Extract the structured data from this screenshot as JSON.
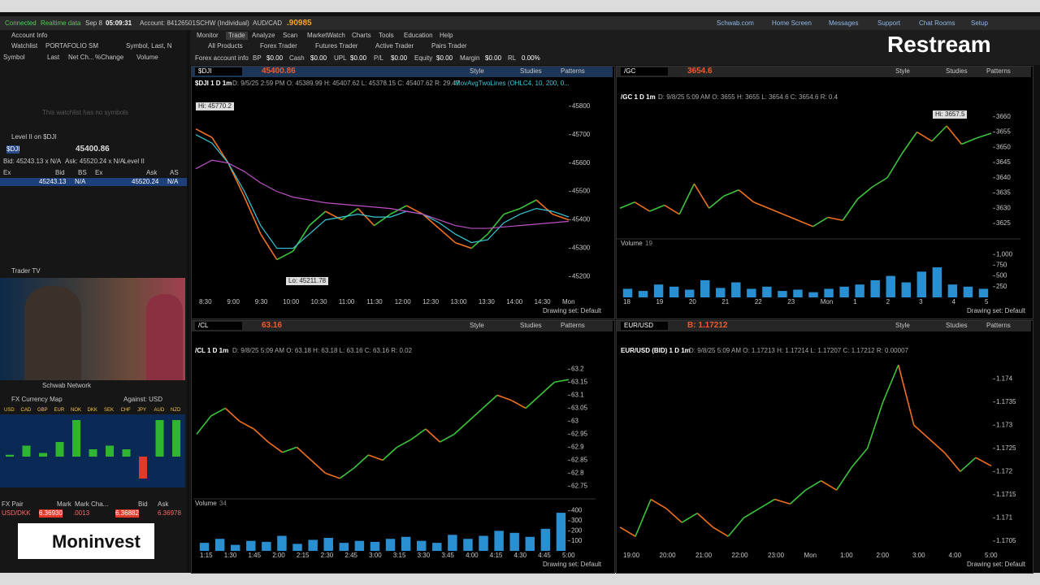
{
  "top_bar": {
    "status": "Connected",
    "feed": "Realtime data",
    "date": "Sep 8",
    "time": "05:09:31",
    "account": "Account: 84126501SCHW (Individual)",
    "pair": "AUD/CAD",
    "pair_price": ".90985",
    "links": [
      "Schwab.com",
      "Home Screen",
      "Messages",
      "Support",
      "Chat Rooms",
      "Setup"
    ]
  },
  "menu": [
    "Monitor",
    "Trade",
    "Analyze",
    "Scan",
    "MarketWatch",
    "Charts",
    "Tools",
    "Education",
    "Help"
  ],
  "sub_tabs": [
    "All Products",
    "Forex Trader",
    "Futures Trader",
    "Active Trader",
    "Pairs Trader"
  ],
  "account_bar": [
    "Forex account info",
    "BP",
    "$0.00",
    "Cash",
    "$0.00",
    "UPL",
    "$0.00",
    "P/L",
    "$0.00",
    "Equity",
    "$0.00",
    "Margin",
    "$0.00",
    "RL",
    "0.00%"
  ],
  "left_panel": {
    "account_info": "Account Info",
    "watchlist": {
      "title": "Watchlist",
      "name": "PORTAFOLIO SM",
      "columns_set": "Symbol, Last, N",
      "headers": [
        "Symbol",
        "Last",
        "Net Ch...",
        "%Change",
        "Volume"
      ],
      "empty": "This watchlist has no symbols"
    },
    "level2": {
      "title": "Level II on $DJI",
      "symbol": "$DJI",
      "price": "45400.86",
      "bid": "Bid: 45243.13 x N/A",
      "ask": "Ask: 45520.24 x N/A",
      "tab": "Level II",
      "headers": [
        "Ex",
        "Bid",
        "BS",
        "Ex",
        "Ask",
        "AS"
      ],
      "row": [
        "45243.13",
        "N/A",
        "45520.24",
        "N/A"
      ]
    },
    "trader_tv": {
      "title": "Trader TV",
      "channel": "Schwab Network"
    },
    "fx_map": {
      "title": "FX Currency Map",
      "against": "Against: USD",
      "currencies": [
        "USD",
        "CAD",
        "GBP",
        "EUR",
        "NOK",
        "DKK",
        "SEK",
        "CHF",
        "JPY",
        "AUD",
        "NZD"
      ],
      "values": [
        0.05,
        0.3,
        0.1,
        0.4,
        1.0,
        0.2,
        0.3,
        0.2,
        -0.6,
        1.0,
        1.0
      ],
      "up_color": "#2fb52f",
      "down_color": "#e03a2a"
    },
    "fx_table": {
      "headers": [
        "FX Pair",
        "Mark",
        "Mark Cha...",
        "Bid",
        "Ask"
      ],
      "row": [
        "USD/DKK",
        "6.36930",
        ".0013",
        "6.36882",
        "6.36978"
      ]
    }
  },
  "chart_toolbar": {
    "style": "Style",
    "studies": "Studies",
    "patterns": "Patterns",
    "drawing_set": "Drawing set: Default"
  },
  "charts": [
    {
      "type": "line",
      "symbol": "$DJI",
      "price": "45400.86",
      "title": "$DJI 1 D 1m",
      "info": "D: 9/5/25 2:59 PM  O: 45389.99  H: 45407.62  L: 45378.15  C: 45407.62  R: 29.47",
      "study": "MovAvgTwoLines (OHLC4, 10, 200, 0...",
      "annotations": [
        "Hi: 45770.2",
        "Lo: 45211.78"
      ],
      "x_labels": [
        "8:30",
        "9:00",
        "9:30",
        "10:00",
        "10:30",
        "11:00",
        "11:30",
        "12:00",
        "12:30",
        "13:00",
        "13:30",
        "14:00",
        "14:30",
        "Mon"
      ],
      "ylim": [
        45130,
        45825
      ],
      "yticks": [
        45200,
        45300,
        45400,
        45500,
        45600,
        45700,
        45800
      ],
      "series": [
        {
          "up_color": "#3cc43c",
          "down_color": "#f07020",
          "values": [
            45720,
            45690,
            45600,
            45480,
            45350,
            45260,
            45290,
            45380,
            45430,
            45400,
            45440,
            45380,
            45420,
            45450,
            45420,
            45370,
            45320,
            45300,
            45350,
            45420,
            45440,
            45470,
            45420,
            45400
          ]
        },
        {
          "color": "#38c8d8",
          "values": [
            45700,
            45670,
            45600,
            45500,
            45380,
            45300,
            45300,
            45350,
            45400,
            45410,
            45420,
            45410,
            45410,
            45430,
            45420,
            45390,
            45350,
            45320,
            45330,
            45390,
            45420,
            45440,
            45430,
            45410
          ]
        },
        {
          "color": "#c050c8",
          "values": [
            45580,
            45610,
            45600,
            45570,
            45530,
            45500,
            45480,
            45470,
            45460,
            45455,
            45450,
            45445,
            45440,
            45430,
            45420,
            45400,
            45380,
            45370,
            45370,
            45375,
            45380,
            45385,
            45390,
            45395
          ]
        }
      ]
    },
    {
      "type": "line",
      "symbol": "/GC",
      "price": "3654.6",
      "title": "/GC 1 D 1m",
      "info": "D: 9/8/25 5:09 AM  O: 3655  H: 3655  L: 3654.6  C: 3654.6  R: 0.4",
      "annotations": [
        "Hi: 3657.5"
      ],
      "x_labels": [
        "18",
        "19",
        "20",
        "21",
        "22",
        "23",
        "Mon",
        "1",
        "2",
        "3",
        "4",
        "5"
      ],
      "ylim": [
        3621,
        3665
      ],
      "yticks": [
        3625,
        3630,
        3635,
        3640,
        3645,
        3650,
        3655,
        3660
      ],
      "series": [
        {
          "up_color": "#3cc43c",
          "down_color": "#f07020",
          "values": [
            3630,
            3632,
            3629,
            3631,
            3628,
            3638,
            3630,
            3634,
            3636,
            3632,
            3630,
            3628,
            3626,
            3624,
            3627,
            3626,
            3633,
            3637,
            3640,
            3648,
            3655,
            3652,
            3657,
            3651,
            3653,
            3654.6
          ]
        }
      ],
      "volume": {
        "label": "Volume",
        "count": "19",
        "color": "#2a8fd0",
        "ylim": [
          0,
          1250
        ],
        "yticks": [
          250,
          500,
          750,
          {
            "value": 1000,
            "label": "1,000"
          }
        ],
        "values": [
          200,
          150,
          300,
          250,
          180,
          400,
          220,
          350,
          200,
          250,
          150,
          180,
          120,
          200,
          250,
          300,
          400,
          500,
          350,
          600,
          700,
          300,
          250,
          200
        ]
      }
    },
    {
      "type": "line",
      "symbol": "/CL",
      "price": "63.16",
      "title": "/CL 1 D 1m",
      "info": "D: 9/8/25 5:09 AM  O: 63.18  H: 63.18  L: 63.16  C: 63.16  R: 0.02",
      "x_labels": [
        "1:15",
        "1:30",
        "1:45",
        "2:00",
        "2:15",
        "2:30",
        "2:45",
        "3:00",
        "3:15",
        "3:30",
        "3:45",
        "4:00",
        "4:15",
        "4:30",
        "4:45",
        "5:00"
      ],
      "ylim": [
        62.745,
        63.245
      ],
      "yticks": [
        62.75,
        62.8,
        62.85,
        62.9,
        62.95,
        63,
        63.05,
        63.1,
        63.15,
        63.2
      ],
      "series": [
        {
          "up_color": "#3cc43c",
          "down_color": "#f07020",
          "values": [
            62.95,
            63.02,
            63.05,
            63.0,
            62.97,
            62.92,
            62.88,
            62.9,
            62.85,
            62.8,
            62.78,
            62.82,
            62.87,
            62.85,
            62.9,
            62.93,
            62.97,
            62.92,
            62.95,
            63.0,
            63.05,
            63.1,
            63.08,
            63.05,
            63.1,
            63.15,
            63.16
          ]
        }
      ],
      "volume": {
        "label": "Volume",
        "count": "34",
        "color": "#2a8fd0",
        "ylim": [
          0,
          470
        ],
        "yticks": [
          100,
          200,
          300,
          400
        ],
        "values": [
          80,
          120,
          60,
          100,
          90,
          150,
          70,
          110,
          130,
          80,
          100,
          90,
          120,
          140,
          100,
          80,
          160,
          120,
          150,
          200,
          180,
          140,
          220,
          380
        ]
      }
    },
    {
      "type": "line",
      "symbol": "EUR/USD",
      "price": "B: 1.17212",
      "title": "EUR/USD (BID) 1 D 1m",
      "info": "D: 9/8/25 5:09 AM  O: 1.17213  H: 1.17214  L: 1.17207  C: 1.17212  R: 0.00007",
      "x_labels": [
        "19:00",
        "20:00",
        "21:00",
        "22:00",
        "23:00",
        "Mon",
        "1:00",
        "2:00",
        "3:00",
        "4:00",
        "5:00"
      ],
      "ylim": [
        1.17034,
        1.17446
      ],
      "yticks": [
        1.1705,
        1.171,
        1.1715,
        1.172,
        1.1725,
        1.173,
        1.1735,
        1.174
      ],
      "series": [
        {
          "up_color": "#3cc43c",
          "down_color": "#f07020",
          "values": [
            1.1708,
            1.1706,
            1.1714,
            1.1712,
            1.1709,
            1.1711,
            1.1708,
            1.1706,
            1.171,
            1.1712,
            1.1714,
            1.1713,
            1.1716,
            1.1718,
            1.1716,
            1.1721,
            1.1725,
            1.1735,
            1.1743,
            1.173,
            1.1727,
            1.1724,
            1.172,
            1.1723,
            1.17212
          ]
        }
      ]
    }
  ],
  "overlays": {
    "brand_top": "Restream",
    "brand_bottom": "Moninvest"
  }
}
